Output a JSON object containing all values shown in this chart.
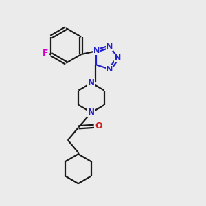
{
  "bg_color": "#ebebeb",
  "bond_color": "#1a1a1a",
  "N_color": "#2020cc",
  "O_color": "#cc2020",
  "F_color": "#cc00cc",
  "line_width": 1.6,
  "figsize": [
    3.0,
    3.0
  ],
  "dpi": 100,
  "xlim": [
    0,
    10
  ],
  "ylim": [
    0,
    10
  ]
}
